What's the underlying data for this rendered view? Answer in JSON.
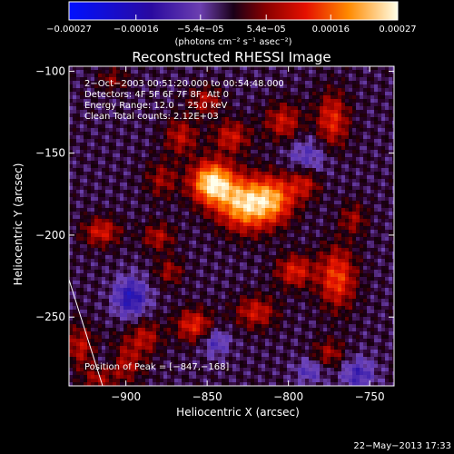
{
  "chart_data": {
    "type": "heatmap",
    "title": "Reconstructed RHESSI Image",
    "xlabel": "Heliocentric X (arcsec)",
    "ylabel": "Heliocentric Y (arcsec)",
    "x_range": [
      -935,
      -735
    ],
    "y_range": [
      -292,
      -97
    ],
    "x_ticks": [
      {
        "value": -900,
        "label": "−900"
      },
      {
        "value": -850,
        "label": "−850"
      },
      {
        "value": -800,
        "label": "−800"
      },
      {
        "value": -750,
        "label": "−750"
      }
    ],
    "y_ticks": [
      {
        "value": -100,
        "label": "−100"
      },
      {
        "value": -150,
        "label": "−150"
      },
      {
        "value": -200,
        "label": "−200"
      },
      {
        "value": -250,
        "label": "−250"
      }
    ],
    "colorbar": {
      "range": [
        -0.00027,
        0.00027
      ],
      "ticks": [
        {
          "value": -0.00027,
          "label": "−0.00027"
        },
        {
          "value": -0.00016,
          "label": "−0.00016"
        },
        {
          "value": -5.4e-05,
          "label": "−5.4e−05"
        },
        {
          "value": 5.4e-05,
          "label": "5.4e−05"
        },
        {
          "value": 0.00016,
          "label": "0.00016"
        },
        {
          "value": 0.00027,
          "label": "0.00027"
        }
      ],
      "unit_label": "(photons cm⁻² s⁻¹ asec⁻²)"
    },
    "annotations": [
      " 2−Oct−2003 00:51:20.000 to 00:54:48.000",
      "Detectors: 4F 5F 6F 7F 8F, Att 0",
      "Energy Range: 12.0 − 25.0 keV",
      "Clean     Total counts: 2.12E+03"
    ],
    "peak_label": "Position of Peak = [−847,−168]",
    "peak": {
      "x": -847,
      "y": -168
    },
    "sources": [
      {
        "x": -847,
        "y": -168,
        "sx": 9,
        "sy": 9,
        "amp": 1.0
      },
      {
        "x": -826,
        "y": -181,
        "sx": 12,
        "sy": 11,
        "amp": 0.92
      },
      {
        "x": -808,
        "y": -178,
        "sx": 9,
        "sy": 10,
        "amp": 0.55
      },
      {
        "x": -866,
        "y": -140,
        "sx": 7,
        "sy": 8,
        "amp": 0.38
      },
      {
        "x": -835,
        "y": -140,
        "sx": 8,
        "sy": 7,
        "amp": 0.42
      },
      {
        "x": -803,
        "y": -131,
        "sx": 8,
        "sy": 8,
        "amp": 0.42
      },
      {
        "x": -851,
        "y": -118,
        "sx": 7,
        "sy": 6,
        "amp": 0.35
      },
      {
        "x": -878,
        "y": -166,
        "sx": 7,
        "sy": 8,
        "amp": 0.3
      },
      {
        "x": -915,
        "y": -198,
        "sx": 8,
        "sy": 6,
        "amp": 0.45
      },
      {
        "x": -880,
        "y": -201,
        "sx": 7,
        "sy": 6,
        "amp": 0.35
      },
      {
        "x": -773,
        "y": -130,
        "sx": 7,
        "sy": 12,
        "amp": 0.5
      },
      {
        "x": -790,
        "y": -168,
        "sx": 7,
        "sy": 7,
        "amp": 0.42
      },
      {
        "x": -770,
        "y": -226,
        "sx": 8,
        "sy": 13,
        "amp": 0.58
      },
      {
        "x": -796,
        "y": -222,
        "sx": 8,
        "sy": 7,
        "amp": 0.48
      },
      {
        "x": -820,
        "y": -247,
        "sx": 9,
        "sy": 7,
        "amp": 0.42
      },
      {
        "x": -858,
        "y": -255,
        "sx": 8,
        "sy": 7,
        "amp": 0.5
      },
      {
        "x": -873,
        "y": -222,
        "sx": 6,
        "sy": 6,
        "amp": 0.3
      },
      {
        "x": -888,
        "y": -262,
        "sx": 7,
        "sy": 7,
        "amp": 0.35
      },
      {
        "x": -903,
        "y": -277,
        "sx": 9,
        "sy": 9,
        "amp": 0.42
      },
      {
        "x": -928,
        "y": -268,
        "sx": 6,
        "sy": 9,
        "amp": 0.38
      },
      {
        "x": -775,
        "y": -272,
        "sx": 7,
        "sy": 6,
        "amp": 0.32
      },
      {
        "x": -760,
        "y": -190,
        "sx": 6,
        "sy": 7,
        "amp": 0.3
      },
      {
        "x": -908,
        "y": -105,
        "sx": 6,
        "sy": 5,
        "amp": 0.25
      },
      {
        "x": -918,
        "y": -288,
        "sx": 6,
        "sy": 5,
        "amp": 0.28
      },
      {
        "x": -897,
        "y": -238,
        "sx": 7,
        "sy": 8,
        "amp": -0.5
      },
      {
        "x": -910,
        "y": -275,
        "sx": 6,
        "sy": 6,
        "amp": -0.28
      },
      {
        "x": -845,
        "y": -265,
        "sx": 6,
        "sy": 6,
        "amp": -0.3
      },
      {
        "x": -788,
        "y": -153,
        "sx": 9,
        "sy": 9,
        "amp": -0.28
      },
      {
        "x": -757,
        "y": -285,
        "sx": 7,
        "sy": 7,
        "amp": -0.35
      },
      {
        "x": -787,
        "y": -283,
        "sx": 6,
        "sy": 5,
        "amp": -0.28
      }
    ]
  },
  "footer": {
    "date": "22−May−2013 17:33"
  }
}
